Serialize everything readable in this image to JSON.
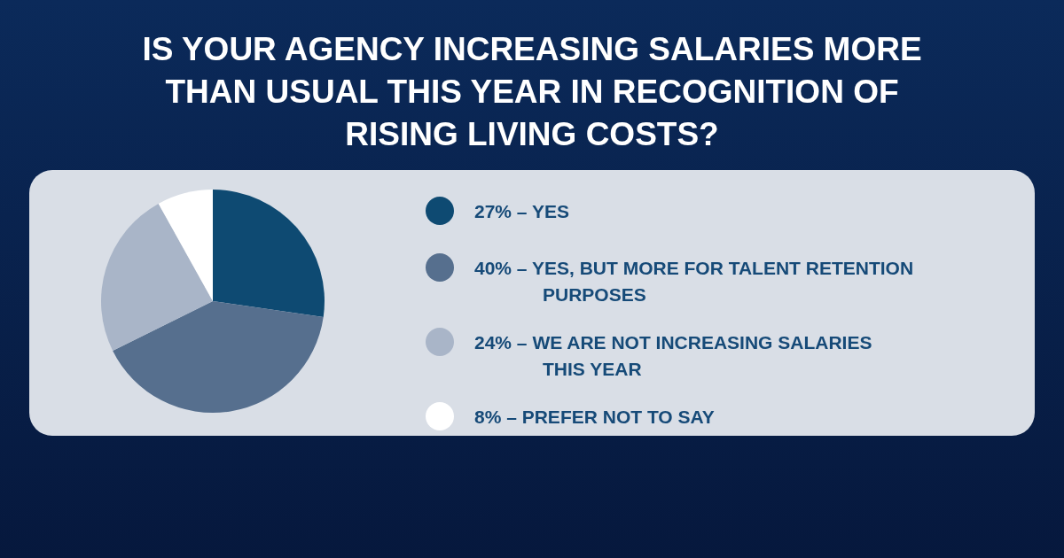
{
  "chart_data": {
    "type": "pie",
    "title": "IS YOUR AGENCY INCREASING SALARIES MORE THAN USUAL THIS YEAR IN RECOGNITION OF RISING LIVING COSTS?",
    "categories": [
      "27% – YES",
      "40% – YES, BUT MORE FOR TALENT RETENTION PURPOSES",
      "24% – WE ARE NOT INCREASING SALARIES THIS YEAR",
      "8% – PREFER NOT TO SAY"
    ],
    "values": [
      27,
      40,
      24,
      8
    ],
    "colors": [
      "#0e4a72",
      "#566f8e",
      "#a9b5c8",
      "#ffffff"
    ],
    "legend": "right"
  }
}
